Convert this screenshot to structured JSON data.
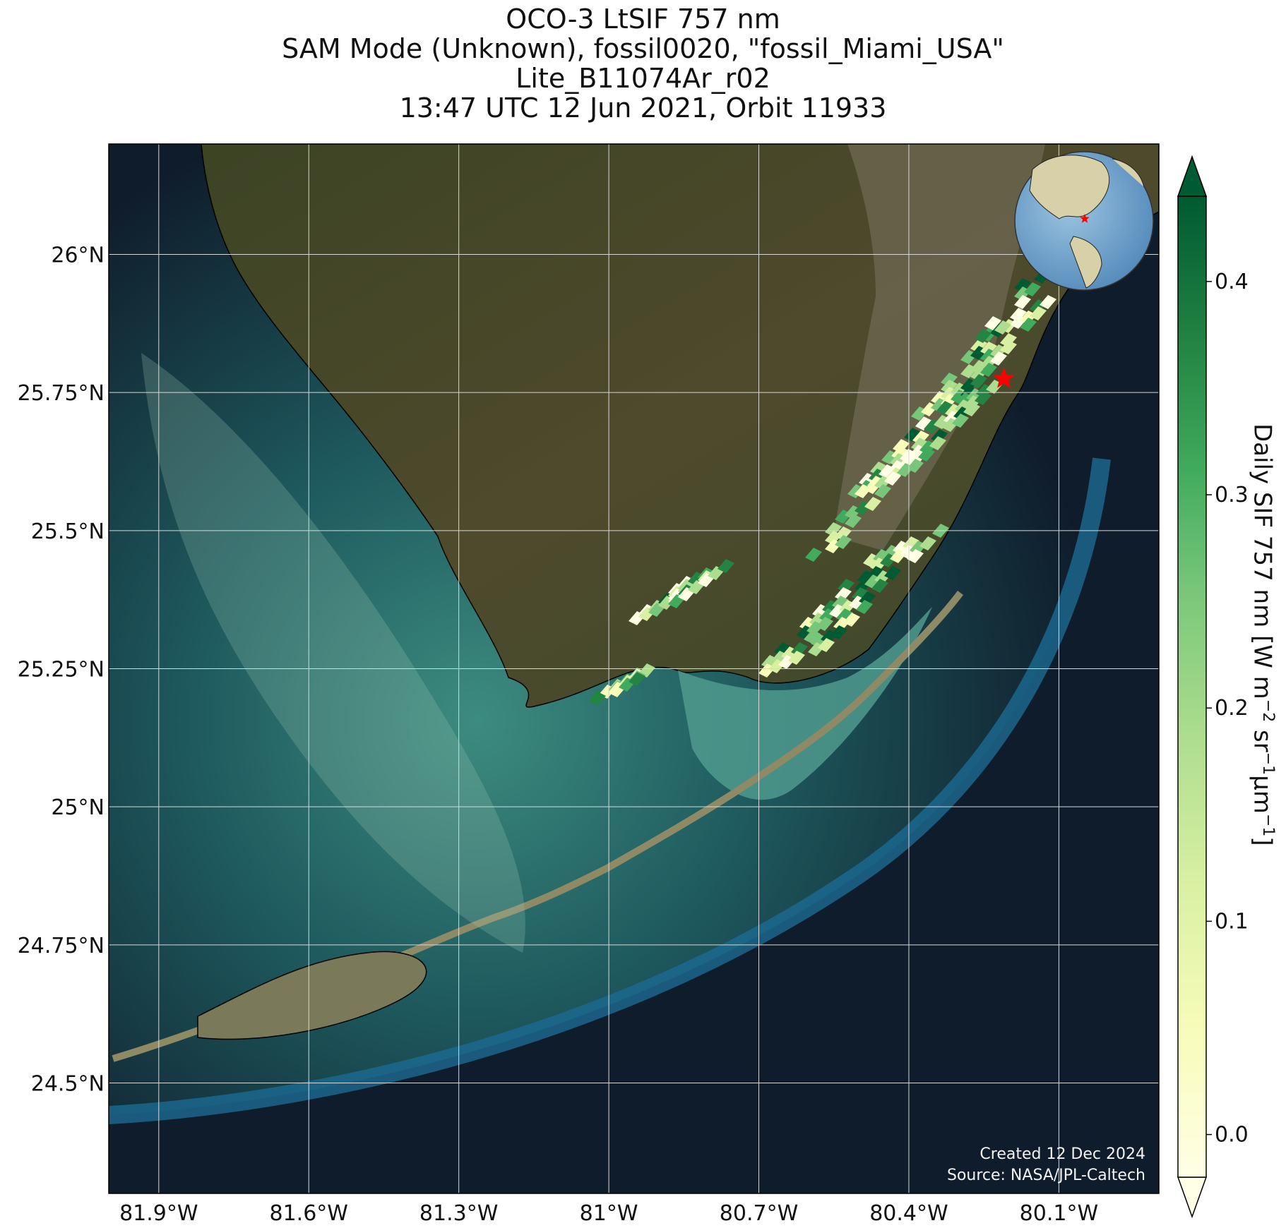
{
  "title": {
    "line1": "OCO-3 LtSIF 757 nm",
    "line2": "SAM Mode (Unknown), fossil0020, \"fossil_Miami_USA\"",
    "line3": "Lite_B11074Ar_r02",
    "line4": "13:47 UTC 12 Jun 2021, Orbit 11933"
  },
  "axes": {
    "lat_ticks": [
      "26°N",
      "25.75°N",
      "25.5°N",
      "25.25°N",
      "25°N",
      "24.75°N",
      "24.5°N"
    ],
    "lon_ticks": [
      "81.9°W",
      "81.6°W",
      "81.3°W",
      "81°W",
      "80.7°W",
      "80.4°W",
      "80.1°W"
    ],
    "lat_range": [
      24.3,
      26.2
    ],
    "lon_range": [
      -82.0,
      -79.9
    ]
  },
  "colorbar": {
    "label_main": "Daily SIF 757 nm [W m",
    "label_sup1": "−2",
    "label_mid1": " sr",
    "label_sup2": "−1",
    "label_mid2": "μm",
    "label_sup3": "−1",
    "label_end": "]",
    "ticks": [
      "0.0",
      "0.1",
      "0.2",
      "0.3",
      "0.4"
    ],
    "range": [
      -0.02,
      0.44
    ],
    "colormap": "YlGn",
    "extend": "both"
  },
  "marker": {
    "name": "fossil_Miami_USA",
    "lat": 25.775,
    "lon": -80.21,
    "color": "#ff0000",
    "icon": "star-icon"
  },
  "inset_globe": {
    "icon": "globe-icon",
    "marker_color": "#ff0000"
  },
  "credits": {
    "line1": "Created 12 Dec 2024",
    "line2": "Source: NASA/JPL-Caltech"
  },
  "colors": {
    "ocean": "#0f1c2b",
    "land": "#4a4a2a",
    "shallow_water": "#3b8f8a",
    "grid": "#d8d8d8"
  }
}
